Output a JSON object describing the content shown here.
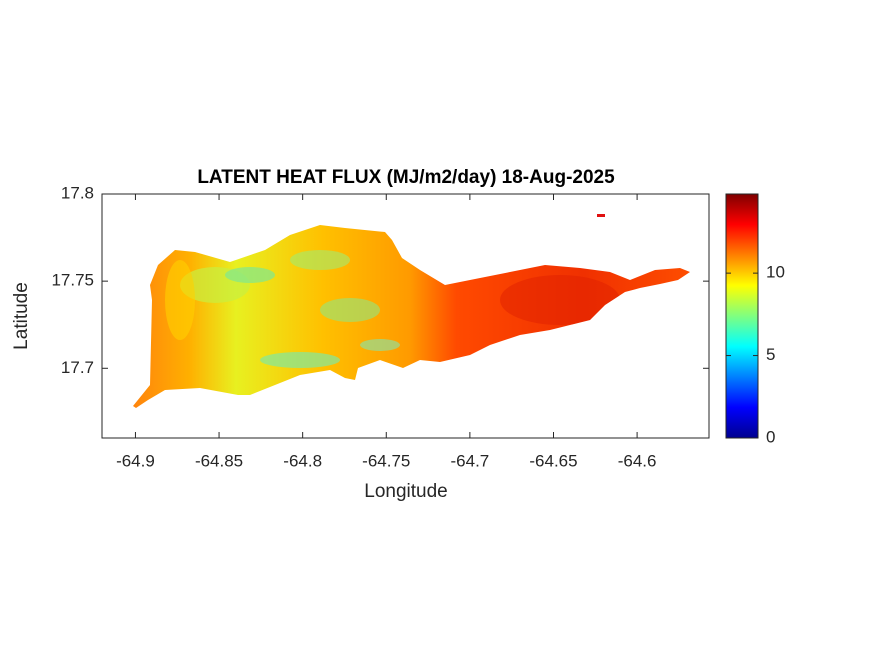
{
  "chart_data": {
    "type": "map",
    "title": "LATENT HEAT FLUX (MJ/m2/day) 18-Aug-2025",
    "xlabel": "Longitude",
    "ylabel": "Latitude",
    "xlim": [
      -64.92,
      -64.557
    ],
    "xticks": [
      -64.9,
      -64.85,
      -64.8,
      -64.75,
      -64.7,
      -64.65,
      -64.6
    ],
    "ylim": [
      17.66,
      17.8
    ],
    "yticks": [
      17.7,
      17.75,
      17.8
    ],
    "colormap": "jet",
    "clim": [
      0,
      14.8
    ],
    "cticks": [
      0,
      5,
      10
    ]
  }
}
